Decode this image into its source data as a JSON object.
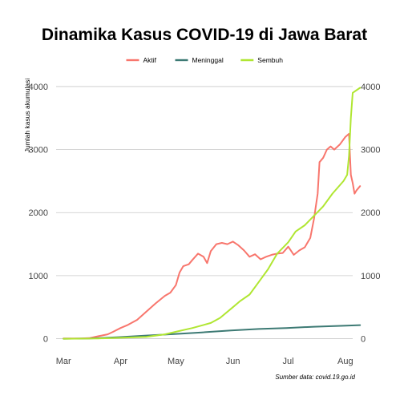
{
  "chart_data": {
    "type": "line",
    "title": "Dinamika Kasus COVID-19 di Jawa Barat",
    "ylabel": "Jumlah kasus akumulasi",
    "xlabel": "",
    "source": "Sumber data: covid.19.go.id",
    "x_ticks": [
      "Mar",
      "Apr",
      "May",
      "Jun",
      "Jul",
      "Aug"
    ],
    "y_ticks": [
      0,
      1000,
      2000,
      3000,
      4000
    ],
    "ylim": [
      -120,
      4050
    ],
    "xlim": [
      "2020-02-26",
      "2020-08-05"
    ],
    "grid": true,
    "legend_position": "top",
    "secondary_y_axis": true,
    "series": [
      {
        "name": "Aktif",
        "color": "#F8766D",
        "points": [
          [
            "2020-03-01",
            3
          ],
          [
            "2020-03-10",
            5
          ],
          [
            "2020-03-15",
            10
          ],
          [
            "2020-03-20",
            40
          ],
          [
            "2020-03-25",
            70
          ],
          [
            "2020-03-28",
            110
          ],
          [
            "2020-04-01",
            170
          ],
          [
            "2020-04-05",
            220
          ],
          [
            "2020-04-10",
            300
          ],
          [
            "2020-04-15",
            430
          ],
          [
            "2020-04-20",
            560
          ],
          [
            "2020-04-25",
            680
          ],
          [
            "2020-04-28",
            730
          ],
          [
            "2020-05-01",
            850
          ],
          [
            "2020-05-03",
            1050
          ],
          [
            "2020-05-05",
            1150
          ],
          [
            "2020-05-08",
            1180
          ],
          [
            "2020-05-10",
            1250
          ],
          [
            "2020-05-13",
            1350
          ],
          [
            "2020-05-16",
            1300
          ],
          [
            "2020-05-18",
            1200
          ],
          [
            "2020-05-20",
            1390
          ],
          [
            "2020-05-23",
            1500
          ],
          [
            "2020-05-26",
            1520
          ],
          [
            "2020-05-29",
            1500
          ],
          [
            "2020-06-01",
            1540
          ],
          [
            "2020-06-04",
            1480
          ],
          [
            "2020-06-07",
            1400
          ],
          [
            "2020-06-10",
            1300
          ],
          [
            "2020-06-13",
            1340
          ],
          [
            "2020-06-16",
            1260
          ],
          [
            "2020-06-19",
            1300
          ],
          [
            "2020-06-22",
            1330
          ],
          [
            "2020-06-25",
            1350
          ],
          [
            "2020-06-28",
            1360
          ],
          [
            "2020-07-01",
            1460
          ],
          [
            "2020-07-04",
            1330
          ],
          [
            "2020-07-07",
            1400
          ],
          [
            "2020-07-10",
            1450
          ],
          [
            "2020-07-13",
            1600
          ],
          [
            "2020-07-15",
            1900
          ],
          [
            "2020-07-17",
            2300
          ],
          [
            "2020-07-18",
            2800
          ],
          [
            "2020-07-20",
            2870
          ],
          [
            "2020-07-22",
            3000
          ],
          [
            "2020-07-24",
            3050
          ],
          [
            "2020-07-26",
            3000
          ],
          [
            "2020-07-29",
            3080
          ],
          [
            "2020-08-01",
            3200
          ],
          [
            "2020-08-03",
            3250
          ],
          [
            "2020-08-04",
            2600
          ],
          [
            "2020-08-05",
            2470
          ],
          [
            "2020-08-06",
            2300
          ],
          [
            "2020-08-07",
            2350
          ],
          [
            "2020-08-09",
            2420
          ]
        ]
      },
      {
        "name": "Meninggal",
        "color": "#3D7A74",
        "points": [
          [
            "2020-03-01",
            0
          ],
          [
            "2020-03-15",
            3
          ],
          [
            "2020-03-31",
            25
          ],
          [
            "2020-04-15",
            50
          ],
          [
            "2020-04-30",
            75
          ],
          [
            "2020-05-15",
            100
          ],
          [
            "2020-05-31",
            130
          ],
          [
            "2020-06-15",
            155
          ],
          [
            "2020-06-30",
            170
          ],
          [
            "2020-07-15",
            190
          ],
          [
            "2020-07-31",
            205
          ],
          [
            "2020-08-09",
            215
          ]
        ]
      },
      {
        "name": "Sembuh",
        "color": "#B0E632",
        "points": [
          [
            "2020-03-01",
            0
          ],
          [
            "2020-03-20",
            5
          ],
          [
            "2020-04-01",
            15
          ],
          [
            "2020-04-15",
            30
          ],
          [
            "2020-04-25",
            70
          ],
          [
            "2020-05-01",
            110
          ],
          [
            "2020-05-10",
            170
          ],
          [
            "2020-05-20",
            250
          ],
          [
            "2020-05-25",
            330
          ],
          [
            "2020-06-01",
            500
          ],
          [
            "2020-06-05",
            600
          ],
          [
            "2020-06-10",
            700
          ],
          [
            "2020-06-15",
            900
          ],
          [
            "2020-06-20",
            1100
          ],
          [
            "2020-06-25",
            1350
          ],
          [
            "2020-07-01",
            1530
          ],
          [
            "2020-07-05",
            1700
          ],
          [
            "2020-07-10",
            1800
          ],
          [
            "2020-07-15",
            1950
          ],
          [
            "2020-07-20",
            2100
          ],
          [
            "2020-07-25",
            2300
          ],
          [
            "2020-07-31",
            2500
          ],
          [
            "2020-08-02",
            2600
          ],
          [
            "2020-08-03",
            2900
          ],
          [
            "2020-08-04",
            3500
          ],
          [
            "2020-08-05",
            3900
          ],
          [
            "2020-08-09",
            3980
          ]
        ]
      }
    ]
  }
}
